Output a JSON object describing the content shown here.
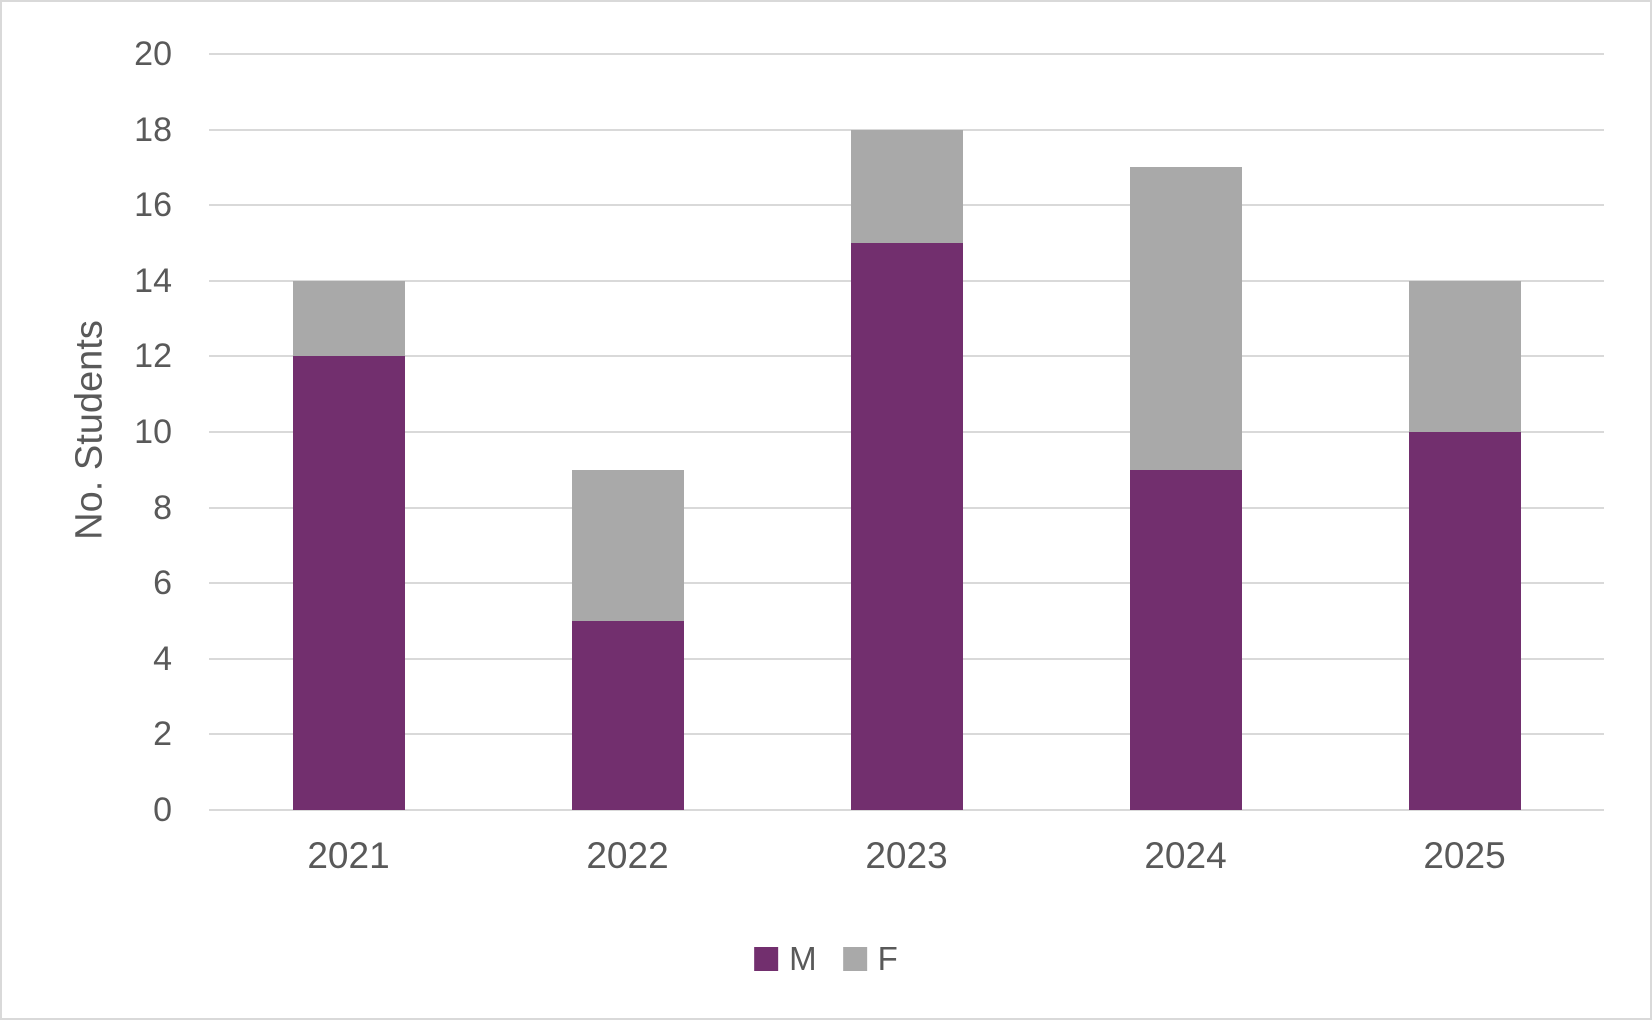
{
  "chart_data": {
    "type": "bar",
    "stacked": true,
    "categories": [
      "2021",
      "2022",
      "2023",
      "2024",
      "2025"
    ],
    "series": [
      {
        "name": "M",
        "color": "#722F6E",
        "values": [
          12,
          5,
          15,
          9,
          10
        ]
      },
      {
        "name": "F",
        "color": "#A9A9A9",
        "values": [
          2,
          4,
          3,
          8,
          4
        ]
      }
    ],
    "totals": [
      14,
      9,
      18,
      17,
      14
    ],
    "title": "",
    "xlabel": "",
    "ylabel": "No. Students",
    "ylim": [
      0,
      20
    ],
    "ytick_step": 2,
    "ytick_labels": [
      "0",
      "2",
      "4",
      "6",
      "8",
      "10",
      "12",
      "14",
      "16",
      "18",
      "20"
    ],
    "grid": true,
    "legend_position": "bottom"
  },
  "colors": {
    "background": "#FFFFFF",
    "frame_border": "#D9D9D9",
    "gridline": "#D9D9D9",
    "axis_text": "#595959",
    "legend_text": "#595959"
  }
}
